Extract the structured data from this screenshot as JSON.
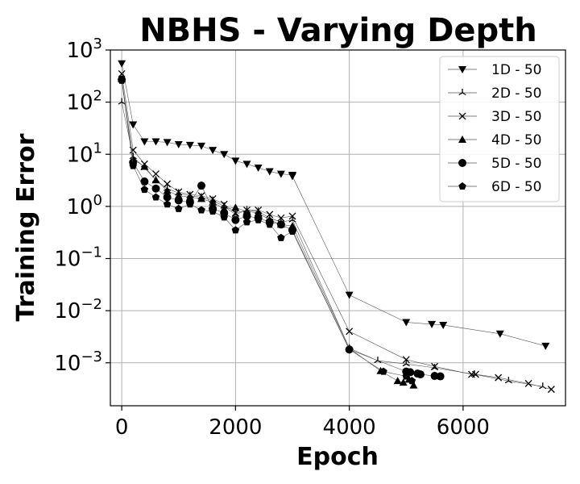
{
  "chart_data": {
    "type": "line",
    "title": "NBHS - Varying Depth",
    "xlabel": "Epoch",
    "ylabel": "Training Error",
    "xlim": [
      -200,
      7800
    ],
    "ylim": [
      0.00015,
      1000
    ],
    "yscale": "log",
    "grid": true,
    "legend_position": "top-right",
    "x_ticks": [
      {
        "value": 0,
        "label": "0"
      },
      {
        "value": 2000,
        "label": "2000"
      },
      {
        "value": 4000,
        "label": "4000"
      },
      {
        "value": 6000,
        "label": "6000"
      }
    ],
    "y_ticks": [
      {
        "value": 0.001,
        "base": "10",
        "exp": "−3"
      },
      {
        "value": 0.01,
        "base": "10",
        "exp": "−2"
      },
      {
        "value": 0.1,
        "base": "10",
        "exp": "−1"
      },
      {
        "value": 1,
        "base": "10",
        "exp": "0"
      },
      {
        "value": 10,
        "base": "10",
        "exp": "1"
      },
      {
        "value": 100,
        "base": "10",
        "exp": "2"
      },
      {
        "value": 1000,
        "base": "10",
        "exp": "3"
      }
    ],
    "series": [
      {
        "name": "1D - 50",
        "marker": "triangle-down",
        "color": "#000000",
        "points": [
          [
            0,
            550
          ],
          [
            200,
            37
          ],
          [
            400,
            17.5
          ],
          [
            600,
            17.5
          ],
          [
            800,
            17
          ],
          [
            1000,
            15.5
          ],
          [
            1200,
            15
          ],
          [
            1400,
            14.5
          ],
          [
            1600,
            12
          ],
          [
            1800,
            10
          ],
          [
            2000,
            7.5
          ],
          [
            2200,
            6.5
          ],
          [
            2400,
            5.5
          ],
          [
            2600,
            4.7
          ],
          [
            2800,
            4.2
          ],
          [
            3000,
            4.0
          ],
          [
            3000,
            3.8
          ],
          [
            4000,
            0.02
          ],
          [
            5000,
            0.006
          ],
          [
            5450,
            0.0055
          ],
          [
            5650,
            0.0053
          ],
          [
            6650,
            0.0036
          ],
          [
            7450,
            0.0021
          ]
        ]
      },
      {
        "name": "2D - 50",
        "marker": "tri-up",
        "color": "#000000",
        "points": [
          [
            0,
            100
          ],
          [
            200,
            9
          ],
          [
            400,
            5.5
          ],
          [
            600,
            3.2
          ],
          [
            800,
            2.2
          ],
          [
            1000,
            1.8
          ],
          [
            1200,
            1.6
          ],
          [
            1400,
            1.5
          ],
          [
            1600,
            1.3
          ],
          [
            1800,
            1.0
          ],
          [
            2000,
            0.7
          ],
          [
            2200,
            0.85
          ],
          [
            2400,
            0.8
          ],
          [
            2600,
            0.6
          ],
          [
            2800,
            0.5
          ],
          [
            3000,
            0.55
          ],
          [
            4000,
            0.0019
          ],
          [
            4500,
            0.0011
          ],
          [
            5000,
            0.00095
          ],
          [
            5500,
            0.0008
          ],
          [
            6200,
            0.0006
          ],
          [
            6800,
            0.00045
          ],
          [
            7400,
            0.00035
          ]
        ]
      },
      {
        "name": "3D - 50",
        "marker": "x",
        "color": "#000000",
        "points": [
          [
            0,
            350
          ],
          [
            200,
            12
          ],
          [
            400,
            6.5
          ],
          [
            600,
            4.2
          ],
          [
            800,
            2.7
          ],
          [
            1000,
            1.9
          ],
          [
            1200,
            1.7
          ],
          [
            1400,
            1.6
          ],
          [
            1600,
            1.4
          ],
          [
            1800,
            1.1
          ],
          [
            2000,
            0.75
          ],
          [
            2200,
            0.85
          ],
          [
            2400,
            0.85
          ],
          [
            2600,
            0.7
          ],
          [
            2800,
            0.6
          ],
          [
            3000,
            0.65
          ],
          [
            4000,
            0.004
          ],
          [
            5000,
            0.00115
          ],
          [
            5500,
            0.00085
          ],
          [
            6150,
            0.0006
          ],
          [
            6220,
            0.0006
          ],
          [
            6620,
            0.00052
          ],
          [
            7150,
            0.0004
          ],
          [
            7550,
            0.00031
          ]
        ]
      },
      {
        "name": "4D - 50",
        "marker": "triangle-up",
        "color": "#000000",
        "points": [
          [
            0,
            280
          ],
          [
            200,
            8
          ],
          [
            400,
            5.8
          ],
          [
            600,
            3.2
          ],
          [
            800,
            2.0
          ],
          [
            1000,
            1.6
          ],
          [
            1200,
            1.5
          ],
          [
            1400,
            1.4
          ],
          [
            1600,
            1.2
          ],
          [
            1800,
            0.9
          ],
          [
            2000,
            0.95
          ],
          [
            2200,
            0.8
          ],
          [
            2400,
            0.75
          ],
          [
            2600,
            0.55
          ],
          [
            2800,
            0.45
          ],
          [
            3000,
            0.42
          ],
          [
            4000,
            0.0019
          ],
          [
            4550,
            0.0007
          ],
          [
            4850,
            0.00045
          ],
          [
            4950,
            0.00042
          ],
          [
            5050,
            0.00048
          ],
          [
            5130,
            0.00037
          ]
        ]
      },
      {
        "name": "5D - 50",
        "marker": "circle",
        "color": "#000000",
        "points": [
          [
            0,
            270
          ],
          [
            200,
            7
          ],
          [
            400,
            3
          ],
          [
            600,
            2.2
          ],
          [
            800,
            1.5
          ],
          [
            1000,
            1.3
          ],
          [
            1200,
            1.2
          ],
          [
            1400,
            2.5
          ],
          [
            1600,
            0.9
          ],
          [
            1800,
            0.75
          ],
          [
            2000,
            0.55
          ],
          [
            2200,
            0.65
          ],
          [
            2400,
            0.6
          ],
          [
            2600,
            0.5
          ],
          [
            2800,
            0.45
          ],
          [
            3000,
            0.35
          ],
          [
            4000,
            0.0018
          ],
          [
            5000,
            0.00068
          ],
          [
            5070,
            0.00066
          ],
          [
            5200,
            0.00062
          ],
          [
            5250,
            0.0006
          ],
          [
            5500,
            0.00056
          ],
          [
            5600,
            0.00055
          ]
        ]
      },
      {
        "name": "6D - 50",
        "marker": "pentagon",
        "color": "#000000",
        "points": [
          [
            0,
            260
          ],
          [
            200,
            6
          ],
          [
            400,
            2.1
          ],
          [
            600,
            1.5
          ],
          [
            800,
            1.1
          ],
          [
            1000,
            0.9
          ],
          [
            1200,
            1.1
          ],
          [
            1400,
            0.85
          ],
          [
            1600,
            0.8
          ],
          [
            1800,
            0.62
          ],
          [
            2000,
            0.35
          ],
          [
            2200,
            0.5
          ],
          [
            2400,
            0.55
          ],
          [
            2600,
            0.45
          ],
          [
            2800,
            0.25
          ],
          [
            3000,
            0.33
          ],
          [
            4000,
            0.0018
          ],
          [
            4600,
            0.00068
          ],
          [
            5000,
            0.00055
          ],
          [
            5100,
            0.00045
          ]
        ]
      }
    ]
  }
}
